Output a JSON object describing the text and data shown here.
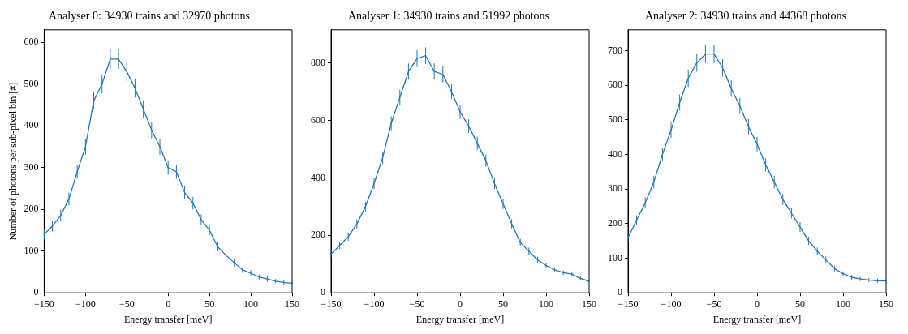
{
  "chart_data": [
    {
      "type": "line",
      "title": "Analyser 0: 34930 trains and 32970 photons",
      "xlabel": "Energy transfer [meV]",
      "ylabel": "Number of photons per sub-pixel bin [#]",
      "x": [
        -150,
        -140,
        -130,
        -120,
        -110,
        -100,
        -90,
        -80,
        -70,
        -60,
        -50,
        -40,
        -30,
        -20,
        -10,
        0,
        10,
        20,
        30,
        40,
        50,
        60,
        70,
        80,
        90,
        100,
        110,
        120,
        130,
        140,
        150
      ],
      "series": [
        {
          "color": "#1f77b4",
          "values": [
            140,
            160,
            185,
            225,
            290,
            350,
            460,
            500,
            560,
            560,
            530,
            490,
            440,
            390,
            350,
            300,
            290,
            240,
            215,
            175,
            150,
            110,
            90,
            72,
            55,
            47,
            38,
            33,
            28,
            25,
            23
          ],
          "errors": [
            12,
            13,
            14,
            15,
            17,
            19,
            21,
            22,
            24,
            24,
            23,
            22,
            21,
            20,
            19,
            17,
            17,
            16,
            15,
            13,
            12,
            11,
            10,
            9,
            7,
            7,
            6,
            6,
            5,
            5,
            5
          ]
        }
      ],
      "xlim": [
        -150,
        150
      ],
      "xticks": [
        {
          "value": -150,
          "label": "−150"
        },
        {
          "value": -100,
          "label": "−100"
        },
        {
          "value": -50,
          "label": "−50"
        },
        0,
        50,
        100,
        150
      ],
      "ylim": [
        0,
        630
      ],
      "yticks": [
        0,
        100,
        200,
        300,
        400,
        500,
        600
      ],
      "grid": false,
      "marker": "none",
      "line_style": "solid",
      "legend": false
    },
    {
      "type": "line",
      "title": "Analyser 1: 34930 trains and 51992 photons",
      "xlabel": "Energy transfer [meV]",
      "x": [
        -150,
        -140,
        -130,
        -120,
        -110,
        -100,
        -90,
        -80,
        -70,
        -60,
        -50,
        -40,
        -30,
        -20,
        -10,
        0,
        10,
        20,
        30,
        40,
        50,
        60,
        70,
        80,
        90,
        100,
        110,
        120,
        130,
        140,
        150
      ],
      "series": [
        {
          "color": "#1f77b4",
          "values": [
            135,
            165,
            195,
            240,
            300,
            380,
            470,
            590,
            680,
            770,
            815,
            825,
            770,
            760,
            700,
            630,
            580,
            520,
            460,
            380,
            310,
            240,
            175,
            145,
            115,
            95,
            80,
            70,
            65,
            50,
            40
          ],
          "errors": [
            12,
            13,
            14,
            16,
            17,
            19,
            22,
            24,
            26,
            28,
            29,
            29,
            28,
            28,
            26,
            25,
            24,
            23,
            21,
            19,
            18,
            16,
            13,
            12,
            11,
            10,
            9,
            8,
            8,
            7,
            6
          ]
        }
      ],
      "xlim": [
        -150,
        150
      ],
      "xticks": [
        {
          "value": -150,
          "label": "−150"
        },
        {
          "value": -100,
          "label": "−100"
        },
        {
          "value": -50,
          "label": "−50"
        },
        0,
        50,
        100,
        150
      ],
      "ylim": [
        0,
        915
      ],
      "yticks": [
        0,
        200,
        400,
        600,
        800
      ],
      "grid": false,
      "marker": "none",
      "line_style": "solid",
      "legend": false
    },
    {
      "type": "line",
      "title": "Analyser 2: 34930 trains and 44368 photons",
      "xlabel": "Energy transfer [meV]",
      "x": [
        -150,
        -140,
        -130,
        -120,
        -110,
        -100,
        -90,
        -80,
        -70,
        -60,
        -50,
        -40,
        -30,
        -20,
        -10,
        0,
        10,
        20,
        30,
        40,
        50,
        60,
        70,
        80,
        90,
        100,
        110,
        120,
        130,
        140,
        150
      ],
      "series": [
        {
          "color": "#1f77b4",
          "values": [
            160,
            210,
            260,
            320,
            400,
            470,
            550,
            620,
            665,
            690,
            690,
            650,
            590,
            540,
            480,
            430,
            370,
            320,
            270,
            230,
            190,
            150,
            120,
            95,
            70,
            55,
            45,
            40,
            37,
            35,
            34
          ],
          "errors": [
            13,
            14,
            16,
            18,
            20,
            22,
            23,
            25,
            26,
            26,
            26,
            25,
            24,
            23,
            22,
            21,
            19,
            18,
            16,
            15,
            14,
            12,
            11,
            10,
            8,
            7,
            7,
            6,
            6,
            6,
            6
          ]
        }
      ],
      "xlim": [
        -150,
        150
      ],
      "xticks": [
        {
          "value": -150,
          "label": "−150"
        },
        {
          "value": -100,
          "label": "−100"
        },
        {
          "value": -50,
          "label": "−50"
        },
        0,
        50,
        100,
        150
      ],
      "ylim": [
        0,
        760
      ],
      "yticks": [
        0,
        100,
        200,
        300,
        400,
        500,
        600,
        700
      ],
      "grid": false,
      "marker": "none",
      "line_style": "solid",
      "legend": false
    }
  ]
}
